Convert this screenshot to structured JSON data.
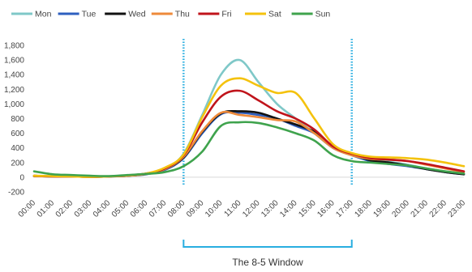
{
  "chart_data": {
    "type": "line",
    "title": "",
    "xlabel": "",
    "ylabel": "",
    "categories": [
      "00:00",
      "01:00",
      "02:00",
      "03:00",
      "04:00",
      "05:00",
      "06:00",
      "07:00",
      "08:00",
      "09:00",
      "10:00",
      "11:00",
      "12:00",
      "13:00",
      "14:00",
      "15:00",
      "16:00",
      "17:00",
      "18:00",
      "19:00",
      "20:00",
      "21:00",
      "22:00",
      "23:00"
    ],
    "ylim": [
      -200,
      1800
    ],
    "yticks": [
      -200,
      0,
      200,
      400,
      600,
      800,
      1000,
      1200,
      1400,
      1600,
      1800
    ],
    "ytick_labels": [
      "-200",
      "0",
      "200",
      "400",
      "600",
      "800",
      "1,000",
      "1,200",
      "1,400",
      "1,600",
      "1,800"
    ],
    "grid": false,
    "legend_position": "top",
    "series": [
      {
        "name": "Mon",
        "color": "#7fc8c8",
        "values": [
          20,
          15,
          10,
          5,
          10,
          25,
          50,
          110,
          320,
          850,
          1400,
          1600,
          1300,
          1000,
          800,
          600,
          400,
          300,
          240,
          210,
          170,
          120,
          80,
          50
        ]
      },
      {
        "name": "Tue",
        "color": "#2e5fbf",
        "values": [
          15,
          10,
          10,
          5,
          10,
          20,
          40,
          100,
          260,
          600,
          860,
          880,
          850,
          800,
          700,
          600,
          400,
          300,
          220,
          180,
          150,
          110,
          70,
          40
        ]
      },
      {
        "name": "Wed",
        "color": "#111111",
        "values": [
          15,
          10,
          10,
          5,
          10,
          20,
          45,
          110,
          270,
          620,
          870,
          900,
          880,
          800,
          720,
          620,
          420,
          320,
          230,
          200,
          160,
          110,
          70,
          40
        ]
      },
      {
        "name": "Thu",
        "color": "#ee8a3a",
        "values": [
          15,
          10,
          10,
          5,
          10,
          20,
          45,
          110,
          280,
          630,
          880,
          850,
          820,
          780,
          760,
          600,
          400,
          300,
          250,
          240,
          220,
          170,
          120,
          70
        ]
      },
      {
        "name": "Fri",
        "color": "#c0141b",
        "values": [
          20,
          12,
          10,
          5,
          10,
          25,
          50,
          120,
          300,
          750,
          1100,
          1180,
          1050,
          900,
          800,
          650,
          420,
          320,
          260,
          240,
          220,
          180,
          130,
          80
        ]
      },
      {
        "name": "Sat",
        "color": "#f4c20d",
        "values": [
          20,
          15,
          10,
          5,
          10,
          25,
          50,
          130,
          310,
          820,
          1250,
          1350,
          1250,
          1150,
          1150,
          800,
          450,
          330,
          280,
          270,
          260,
          240,
          200,
          150
        ]
      },
      {
        "name": "Sun",
        "color": "#3fa34d",
        "values": [
          80,
          40,
          30,
          20,
          15,
          30,
          45,
          70,
          150,
          350,
          700,
          750,
          740,
          680,
          600,
          500,
          300,
          220,
          200,
          180,
          160,
          120,
          80,
          50
        ]
      }
    ],
    "window": {
      "start": "08:00",
      "end": "17:00",
      "label": "The 8-5 Window",
      "color": "#29aee0"
    }
  }
}
